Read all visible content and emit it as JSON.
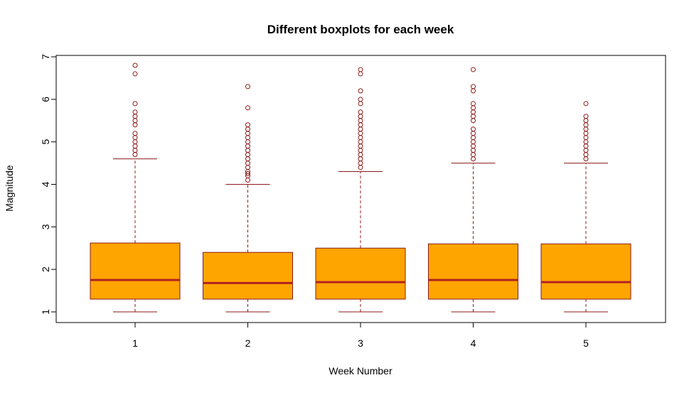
{
  "chart_data": {
    "type": "box",
    "title": "Different boxplots for each week",
    "xlabel": "Week Number",
    "ylabel": "Magnitude",
    "categories": [
      "1",
      "2",
      "3",
      "4",
      "5"
    ],
    "ylim": [
      1,
      7
    ],
    "yticks": [
      "1",
      "2",
      "3",
      "4",
      "5",
      "6",
      "7"
    ],
    "grid": false,
    "colors": {
      "box_fill": "#FFA500",
      "median_line": "#B22222",
      "border": "#8B1A1A"
    },
    "boxes": [
      {
        "category": "1",
        "whisker_low": 1.0,
        "q1": 1.3,
        "median": 1.75,
        "q3": 2.62,
        "whisker_high": 4.6,
        "outliers": [
          4.7,
          4.8,
          4.9,
          5.0,
          5.1,
          5.2,
          5.4,
          5.5,
          5.6,
          5.7,
          5.9,
          6.6,
          6.8
        ]
      },
      {
        "category": "2",
        "whisker_low": 1.0,
        "q1": 1.3,
        "median": 1.68,
        "q3": 2.4,
        "whisker_high": 4.0,
        "outliers": [
          4.1,
          4.2,
          4.25,
          4.3,
          4.4,
          4.5,
          4.6,
          4.7,
          4.8,
          4.9,
          5.0,
          5.1,
          5.2,
          5.3,
          5.4,
          5.8,
          6.3
        ]
      },
      {
        "category": "3",
        "whisker_low": 1.0,
        "q1": 1.3,
        "median": 1.7,
        "q3": 2.5,
        "whisker_high": 4.3,
        "outliers": [
          4.4,
          4.5,
          4.6,
          4.7,
          4.8,
          4.9,
          5.0,
          5.1,
          5.2,
          5.3,
          5.4,
          5.5,
          5.6,
          5.7,
          5.9,
          6.0,
          6.2,
          6.6,
          6.7
        ]
      },
      {
        "category": "4",
        "whisker_low": 1.0,
        "q1": 1.3,
        "median": 1.75,
        "q3": 2.6,
        "whisker_high": 4.5,
        "outliers": [
          4.6,
          4.7,
          4.8,
          4.9,
          5.0,
          5.1,
          5.2,
          5.3,
          5.5,
          5.6,
          5.7,
          5.8,
          5.9,
          6.2,
          6.3,
          6.7
        ]
      },
      {
        "category": "5",
        "whisker_low": 1.0,
        "q1": 1.3,
        "median": 1.7,
        "q3": 2.6,
        "whisker_high": 4.5,
        "outliers": [
          4.6,
          4.7,
          4.8,
          4.9,
          5.0,
          5.1,
          5.2,
          5.3,
          5.4,
          5.5,
          5.6,
          5.9
        ]
      }
    ]
  }
}
